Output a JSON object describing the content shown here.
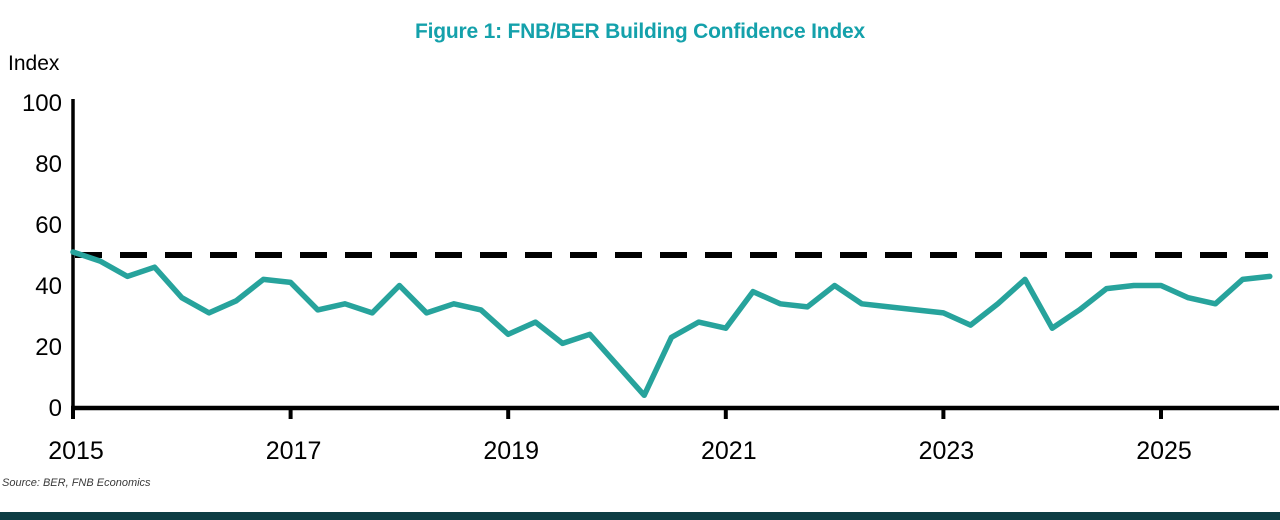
{
  "page": {
    "background_color": "#ffffff",
    "bottom_bar_color": "#0d3d44"
  },
  "header": {
    "title": "Figure 1: FNB/BER Building Confidence Index",
    "title_color": "#14a1ab"
  },
  "source": {
    "text": "Source: BER, FNB Economics"
  },
  "chart_data": {
    "type": "line",
    "title": "Figure 1: FNB/BER Building Confidence Index",
    "series_name": "FNB/BER Building Confidence Index",
    "frequency": "quarterly",
    "y_axis_label": "Index",
    "ylim": [
      0,
      100
    ],
    "y_ticks": [
      0,
      20,
      40,
      60,
      80,
      100
    ],
    "x_start_year": 2015,
    "x_tick_years": [
      2015,
      2017,
      2019,
      2021,
      2023,
      2025
    ],
    "grid": "off",
    "legend": "none",
    "line_color": "#27a39c",
    "axis_color": "#000000",
    "reference_line": {
      "value": 50,
      "style": "dashed",
      "color": "#000000"
    },
    "quarters": [
      "2015Q1",
      "2015Q2",
      "2015Q3",
      "2015Q4",
      "2016Q1",
      "2016Q2",
      "2016Q3",
      "2016Q4",
      "2017Q1",
      "2017Q2",
      "2017Q3",
      "2017Q4",
      "2018Q1",
      "2018Q2",
      "2018Q3",
      "2018Q4",
      "2019Q1",
      "2019Q2",
      "2019Q3",
      "2019Q4",
      "2020Q1",
      "2020Q2",
      "2020Q3",
      "2020Q4",
      "2021Q1",
      "2021Q2",
      "2021Q3",
      "2021Q4",
      "2022Q1",
      "2022Q2",
      "2022Q3",
      "2022Q4",
      "2023Q1",
      "2023Q2",
      "2023Q3",
      "2023Q4",
      "2024Q1",
      "2024Q2",
      "2024Q3",
      "2024Q4",
      "2025Q1",
      "2025Q2",
      "2025Q3",
      "2025Q4",
      "2026Q1"
    ],
    "values": [
      51,
      48,
      43,
      46,
      36,
      31,
      35,
      42,
      41,
      32,
      34,
      31,
      40,
      31,
      34,
      32,
      24,
      28,
      21,
      24,
      14,
      4,
      23,
      28,
      26,
      38,
      34,
      33,
      40,
      34,
      33,
      32,
      31,
      27,
      34,
      42,
      26,
      32,
      39,
      40,
      40,
      36,
      34,
      42,
      43
    ]
  }
}
